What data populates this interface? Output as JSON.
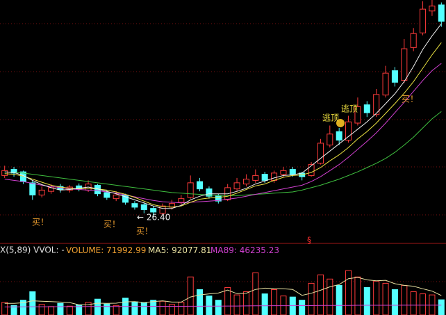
{
  "chart_data": {
    "type": "candlestick",
    "up_color": "#ff3b3b",
    "down_color": "#54ffff",
    "ylim": [
      23.2,
      62
    ],
    "open": [
      33.2,
      34.2,
      33.8,
      32.0,
      30.0,
      30.6,
      31.4,
      30.8,
      31.5,
      30.8,
      31.6,
      30.4,
      29.4,
      30.0,
      28.6,
      28.4,
      27.8,
      27.0,
      28.0,
      28.8,
      29.6,
      32.2,
      31.0,
      29.9,
      29.2,
      31.0,
      31.8,
      32.4,
      33.4,
      32.4,
      33.4,
      34.2,
      33.6,
      33.2,
      35.2,
      38.2,
      40.4,
      39.0,
      41.8,
      44.8,
      43.2,
      46.4,
      50.4,
      48.8,
      54.2,
      56.6,
      60.2,
      61.2
    ],
    "high": [
      34.8,
      34.6,
      34.0,
      32.4,
      31.4,
      31.8,
      31.8,
      31.6,
      31.9,
      32.4,
      31.8,
      30.8,
      30.6,
      30.2,
      29.0,
      28.8,
      28.2,
      28.6,
      29.2,
      30.0,
      33.2,
      32.8,
      31.4,
      30.2,
      31.8,
      32.8,
      33.4,
      34.2,
      33.8,
      34.0,
      34.6,
      34.6,
      33.8,
      35.4,
      39.2,
      41.4,
      41.0,
      43.0,
      46.0,
      45.4,
      47.4,
      51.2,
      51.0,
      55.6,
      57.4,
      61.8,
      62.0,
      61.6
    ],
    "low": [
      32.8,
      33.0,
      31.8,
      29.2,
      29.6,
      30.2,
      30.4,
      30.4,
      30.6,
      30.5,
      29.8,
      29.2,
      29.0,
      28.4,
      27.6,
      27.0,
      26.4,
      26.8,
      27.6,
      28.4,
      29.4,
      30.6,
      29.4,
      28.6,
      29.0,
      30.6,
      31.4,
      32.0,
      32.0,
      32.0,
      33.0,
      33.0,
      32.4,
      33.0,
      35.0,
      37.8,
      38.2,
      38.6,
      41.4,
      42.8,
      42.8,
      46.0,
      47.8,
      48.4,
      53.6,
      56.2,
      59.4,
      57.6
    ],
    "close": [
      34.0,
      33.6,
      32.2,
      30.0,
      30.8,
      31.2,
      30.9,
      31.3,
      31.0,
      31.8,
      30.2,
      29.6,
      30.0,
      28.8,
      28.0,
      27.6,
      27.2,
      28.2,
      28.6,
      29.4,
      32.0,
      31.0,
      29.8,
      29.0,
      31.2,
      32.0,
      32.6,
      33.2,
      32.4,
      33.6,
      34.0,
      33.4,
      33.0,
      35.0,
      38.5,
      40.0,
      39.0,
      42.0,
      44.5,
      43.5,
      46.5,
      50.0,
      48.5,
      54.0,
      56.5,
      60.5,
      61.0,
      58.5
    ],
    "ma_lines": [
      {
        "color": "#3fbf3f",
        "values": [
          33.8,
          33.7,
          33.6,
          33.4,
          33.2,
          33.0,
          32.8,
          32.6,
          32.4,
          32.2,
          32.0,
          31.8,
          31.6,
          31.4,
          31.2,
          31.0,
          30.8,
          30.6,
          30.4,
          30.3,
          30.2,
          30.1,
          30.0,
          29.9,
          29.9,
          29.9,
          30.0,
          30.1,
          30.2,
          30.3,
          30.4,
          30.5,
          30.8,
          31.2,
          31.6,
          32.1,
          32.6,
          33.2,
          33.8,
          34.5,
          35.2,
          36.0,
          37.0,
          38.2,
          39.5,
          41.0,
          42.5,
          43.7
        ]
      },
      {
        "color": "#d040d0",
        "values": [
          32.6,
          32.4,
          32.2,
          31.9,
          31.6,
          31.4,
          31.2,
          31.0,
          30.9,
          30.8,
          30.7,
          30.5,
          30.3,
          30.0,
          29.7,
          29.4,
          29.1,
          28.9,
          28.8,
          28.7,
          28.8,
          28.9,
          29.0,
          29.1,
          29.3,
          29.5,
          29.8,
          30.1,
          30.4,
          30.7,
          31.0,
          31.3,
          31.6,
          32.2,
          33.0,
          34.0,
          35.0,
          36.2,
          37.5,
          38.8,
          40.2,
          41.8,
          43.5,
          45.2,
          47.0,
          48.8,
          50.4,
          51.6
        ]
      },
      {
        "color": "#e8e040",
        "values": [
          33.5,
          33.4,
          33.1,
          32.6,
          32.1,
          31.6,
          31.3,
          31.1,
          31.0,
          31.1,
          31.0,
          30.8,
          30.5,
          30.1,
          29.6,
          29.0,
          28.4,
          28.1,
          28.0,
          28.2,
          28.8,
          29.3,
          29.5,
          29.6,
          29.8,
          30.3,
          30.9,
          31.5,
          31.8,
          32.4,
          32.9,
          33.2,
          33.3,
          33.7,
          34.5,
          35.6,
          36.6,
          37.8,
          39.2,
          40.4,
          41.8,
          43.4,
          45.0,
          46.7,
          48.6,
          50.8,
          53.0,
          55.0
        ]
      },
      {
        "color": "#f0f0f0",
        "values": [
          33.8,
          33.7,
          33.2,
          32.4,
          31.7,
          31.2,
          30.8,
          30.9,
          31.1,
          31.3,
          31.0,
          30.6,
          30.2,
          29.7,
          29.2,
          28.7,
          28.2,
          27.8,
          27.8,
          28.3,
          29.2,
          29.8,
          30.2,
          30.2,
          30.2,
          30.6,
          31.1,
          31.8,
          32.3,
          32.8,
          33.2,
          33.3,
          33.6,
          34.8,
          36.0,
          37.2,
          38.4,
          39.6,
          40.8,
          42.0,
          43.4,
          45.0,
          46.6,
          48.6,
          51.1,
          53.9,
          56.1,
          58.1
        ]
      }
    ],
    "annotations": [
      {
        "text": "买！",
        "color": "#f0a030"
      },
      {
        "text": "买！",
        "color": "#f0a030"
      },
      {
        "text": "买！",
        "color": "#f0a030"
      },
      {
        "text": "买！",
        "color": "#f0a030"
      },
      {
        "text": "逃顶",
        "color": "#f0e040"
      },
      {
        "text": "逃顶",
        "color": "#f0e040"
      },
      {
        "text": "← 26.40",
        "color": "#f0f0f0"
      },
      {
        "text": "§",
        "color": "#ff3030"
      }
    ],
    "indicator_label": "X(5,89) VVOL: -",
    "volume": {
      "name": "VOLUME:",
      "color": "#f0a030",
      "ylim": [
        0,
        240000
      ],
      "values": [
        60000,
        45000,
        70000,
        110000,
        50000,
        40000,
        55000,
        42000,
        48000,
        60000,
        75000,
        52000,
        45000,
        80000,
        62000,
        58000,
        70000,
        65000,
        50000,
        60000,
        180000,
        120000,
        90000,
        70000,
        130000,
        95000,
        110000,
        200000,
        100000,
        120000,
        90000,
        85000,
        70000,
        150000,
        190000,
        170000,
        140000,
        210000,
        180000,
        130000,
        160000,
        150000,
        120000,
        140000,
        110000,
        100000,
        95000,
        71992.99
      ],
      "ma_lines": [
        {
          "name": "MA5:",
          "color": "#e8e0a0",
          "values": [
            55000,
            55000,
            58000,
            67000,
            65000,
            63000,
            61000,
            59000,
            48000,
            49000,
            56000,
            55000,
            56000,
            62000,
            63000,
            59000,
            63000,
            67000,
            61000,
            61000,
            85000,
            95000,
            100000,
            104000,
            118000,
            101000,
            103000,
            121000,
            127000,
            125000,
            124000,
            121000,
            93000,
            103000,
            117000,
            133000,
            144000,
            172000,
            178000,
            166000,
            162000,
            164000,
            148000,
            140000,
            136000,
            124000,
            113000,
            92077.81
          ]
        },
        {
          "name": "MA89:",
          "color": "#d040d0",
          "values": [
            38000,
            38000,
            38500,
            39000,
            39000,
            39000,
            39500,
            39500,
            39500,
            40000,
            40000,
            40000,
            40000,
            40500,
            40500,
            40500,
            41000,
            41000,
            41000,
            41000,
            41500,
            41500,
            42000,
            42000,
            42500,
            42500,
            43000,
            43500,
            43500,
            44000,
            44000,
            44000,
            44500,
            44500,
            45000,
            45000,
            45500,
            45500,
            46000,
            46000,
            46000,
            46000,
            46000,
            46200,
            46200,
            46200,
            46235,
            46235.23
          ]
        }
      ]
    }
  }
}
